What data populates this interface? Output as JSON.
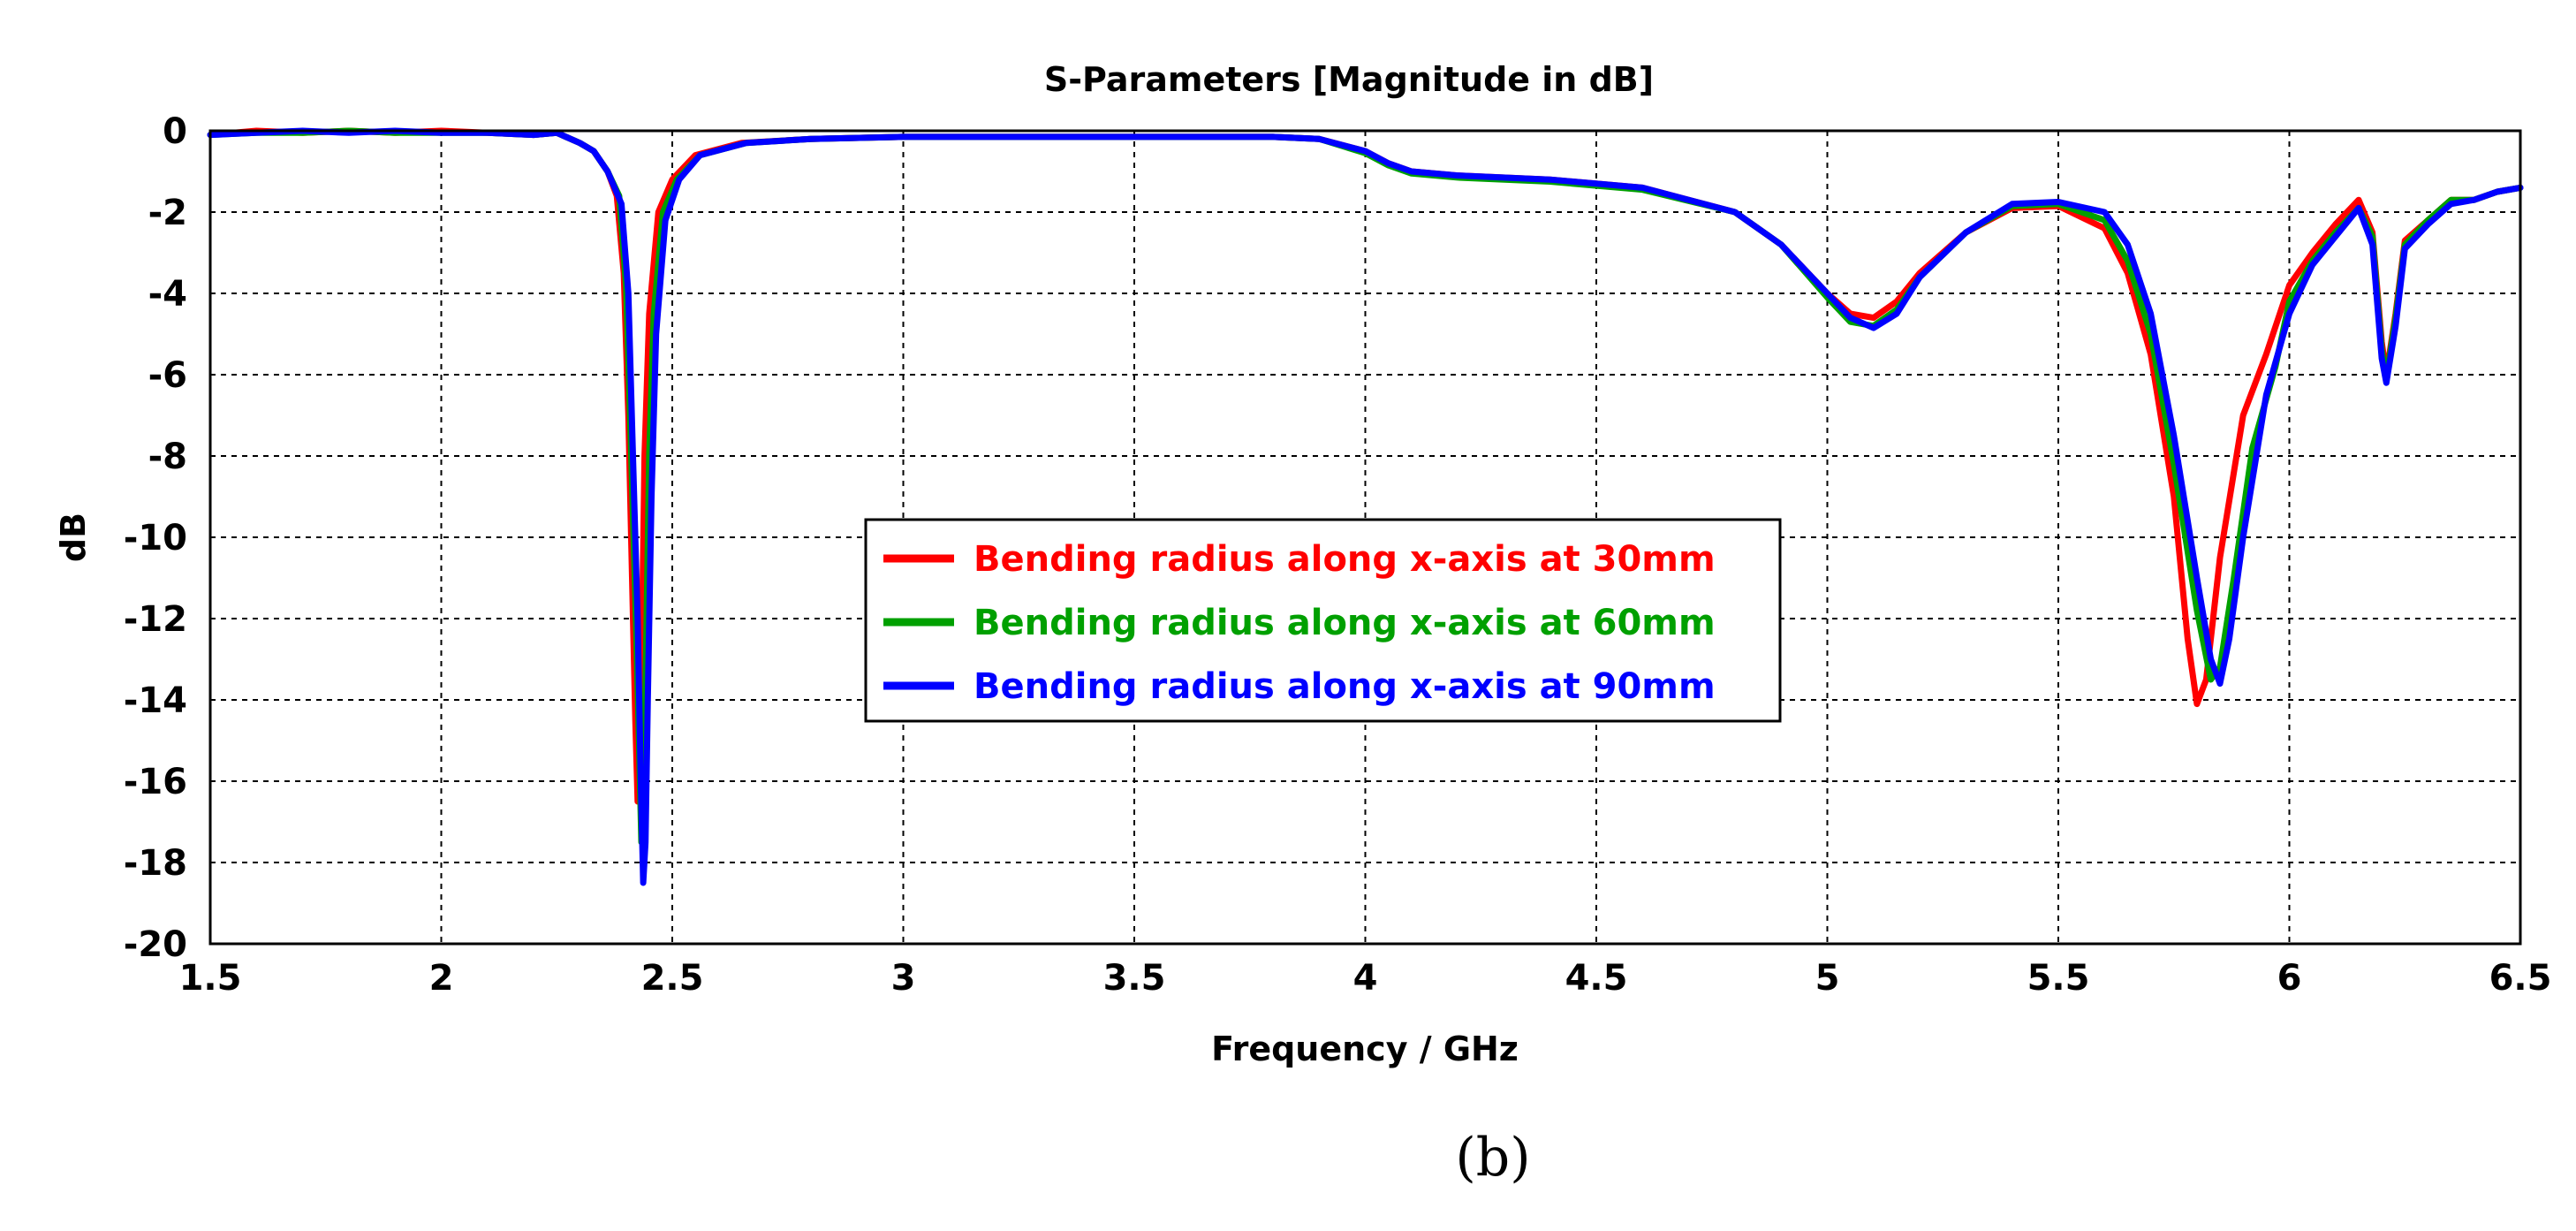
{
  "chart_data": {
    "type": "line",
    "title": "S-Parameters [Magnitude in dB]",
    "xlabel": "Frequency / GHz",
    "ylabel": "dB",
    "xlim": [
      1.5,
      6.5
    ],
    "ylim": [
      -20,
      0
    ],
    "xticks": [
      1.5,
      2,
      2.5,
      3,
      3.5,
      4,
      4.5,
      5,
      5.5,
      6,
      6.5
    ],
    "xtick_labels": [
      "1.5",
      "2",
      "2.5",
      "3",
      "3.5",
      "4",
      "4.5",
      "5",
      "5.5",
      "6",
      "6.5"
    ],
    "yticks": [
      0,
      -2,
      -4,
      -6,
      -8,
      -10,
      -12,
      -14,
      -16,
      -18,
      -20
    ],
    "ytick_labels": [
      "0",
      "-2",
      "-4",
      "-6",
      "-8",
      "-10",
      "-12",
      "-14",
      "-16",
      "-18",
      "-20"
    ],
    "grid": true,
    "legend_position": "center",
    "caption": "(b)",
    "series": [
      {
        "name": "Bending radius along x-axis at 30mm",
        "color": "#ff0000",
        "points": [
          [
            1.5,
            -0.1
          ],
          [
            1.6,
            0
          ],
          [
            1.7,
            -0.05
          ],
          [
            1.8,
            0
          ],
          [
            1.9,
            -0.05
          ],
          [
            2.0,
            0
          ],
          [
            2.1,
            -0.05
          ],
          [
            2.2,
            -0.1
          ],
          [
            2.25,
            -0.05
          ],
          [
            2.3,
            -0.3
          ],
          [
            2.33,
            -0.5
          ],
          [
            2.36,
            -1.0
          ],
          [
            2.38,
            -1.6
          ],
          [
            2.395,
            -3.5
          ],
          [
            2.405,
            -7
          ],
          [
            2.413,
            -11
          ],
          [
            2.42,
            -14.5
          ],
          [
            2.425,
            -16.5
          ],
          [
            2.43,
            -16
          ],
          [
            2.435,
            -12
          ],
          [
            2.44,
            -8
          ],
          [
            2.45,
            -4.5
          ],
          [
            2.47,
            -2.0
          ],
          [
            2.5,
            -1.2
          ],
          [
            2.55,
            -0.6
          ],
          [
            2.65,
            -0.3
          ],
          [
            2.8,
            -0.2
          ],
          [
            3.0,
            -0.15
          ],
          [
            3.5,
            -0.15
          ],
          [
            3.8,
            -0.15
          ],
          [
            3.9,
            -0.2
          ],
          [
            4.0,
            -0.5
          ],
          [
            4.05,
            -0.8
          ],
          [
            4.1,
            -1.0
          ],
          [
            4.2,
            -1.1
          ],
          [
            4.4,
            -1.2
          ],
          [
            4.6,
            -1.4
          ],
          [
            4.8,
            -2.0
          ],
          [
            4.9,
            -2.8
          ],
          [
            5.0,
            -4.0
          ],
          [
            5.05,
            -4.5
          ],
          [
            5.1,
            -4.6
          ],
          [
            5.15,
            -4.2
          ],
          [
            5.2,
            -3.5
          ],
          [
            5.3,
            -2.5
          ],
          [
            5.4,
            -1.9
          ],
          [
            5.5,
            -1.85
          ],
          [
            5.6,
            -2.4
          ],
          [
            5.65,
            -3.5
          ],
          [
            5.7,
            -5.5
          ],
          [
            5.75,
            -9.0
          ],
          [
            5.78,
            -12.5
          ],
          [
            5.8,
            -14.1
          ],
          [
            5.82,
            -13.5
          ],
          [
            5.85,
            -10.5
          ],
          [
            5.9,
            -7.0
          ],
          [
            5.95,
            -5.5
          ],
          [
            6.0,
            -3.8
          ],
          [
            6.05,
            -3.0
          ],
          [
            6.1,
            -2.3
          ],
          [
            6.15,
            -1.7
          ],
          [
            6.18,
            -2.5
          ],
          [
            6.2,
            -5.2
          ],
          [
            6.21,
            -6.0
          ],
          [
            6.23,
            -4.5
          ],
          [
            6.25,
            -2.7
          ],
          [
            6.3,
            -2.2
          ],
          [
            6.35,
            -1.7
          ],
          [
            6.4,
            -1.7
          ],
          [
            6.45,
            -1.5
          ],
          [
            6.5,
            -1.4
          ]
        ]
      },
      {
        "name": "Bending radius along x-axis at 60mm",
        "color": "#00a000",
        "points": [
          [
            1.5,
            -0.1
          ],
          [
            1.6,
            -0.05
          ],
          [
            1.7,
            -0.05
          ],
          [
            1.8,
            0
          ],
          [
            1.9,
            -0.05
          ],
          [
            2.0,
            -0.05
          ],
          [
            2.1,
            -0.05
          ],
          [
            2.2,
            -0.1
          ],
          [
            2.25,
            -0.05
          ],
          [
            2.3,
            -0.3
          ],
          [
            2.33,
            -0.5
          ],
          [
            2.36,
            -1.0
          ],
          [
            2.385,
            -1.6
          ],
          [
            2.4,
            -3.8
          ],
          [
            2.41,
            -7.5
          ],
          [
            2.42,
            -11.5
          ],
          [
            2.428,
            -15
          ],
          [
            2.433,
            -17.5
          ],
          [
            2.438,
            -17
          ],
          [
            2.443,
            -13
          ],
          [
            2.45,
            -8
          ],
          [
            2.46,
            -4.5
          ],
          [
            2.48,
            -2.0
          ],
          [
            2.51,
            -1.2
          ],
          [
            2.56,
            -0.6
          ],
          [
            2.66,
            -0.3
          ],
          [
            2.8,
            -0.2
          ],
          [
            3.0,
            -0.15
          ],
          [
            3.5,
            -0.15
          ],
          [
            3.8,
            -0.15
          ],
          [
            3.9,
            -0.2
          ],
          [
            4.0,
            -0.55
          ],
          [
            4.05,
            -0.85
          ],
          [
            4.1,
            -1.05
          ],
          [
            4.2,
            -1.15
          ],
          [
            4.4,
            -1.25
          ],
          [
            4.6,
            -1.45
          ],
          [
            4.8,
            -2.0
          ],
          [
            4.9,
            -2.8
          ],
          [
            5.0,
            -4.1
          ],
          [
            5.05,
            -4.7
          ],
          [
            5.1,
            -4.8
          ],
          [
            5.15,
            -4.4
          ],
          [
            5.2,
            -3.6
          ],
          [
            5.3,
            -2.5
          ],
          [
            5.4,
            -1.85
          ],
          [
            5.5,
            -1.8
          ],
          [
            5.6,
            -2.2
          ],
          [
            5.65,
            -3.2
          ],
          [
            5.7,
            -5.0
          ],
          [
            5.75,
            -8.2
          ],
          [
            5.8,
            -11.8
          ],
          [
            5.83,
            -13.5
          ],
          [
            5.85,
            -13.2
          ],
          [
            5.88,
            -11.0
          ],
          [
            5.92,
            -7.8
          ],
          [
            5.97,
            -5.8
          ],
          [
            6.0,
            -4.2
          ],
          [
            6.05,
            -3.2
          ],
          [
            6.1,
            -2.5
          ],
          [
            6.15,
            -1.9
          ],
          [
            6.18,
            -2.6
          ],
          [
            6.2,
            -5.4
          ],
          [
            6.21,
            -6.1
          ],
          [
            6.23,
            -4.6
          ],
          [
            6.25,
            -2.8
          ],
          [
            6.3,
            -2.2
          ],
          [
            6.35,
            -1.7
          ],
          [
            6.4,
            -1.7
          ],
          [
            6.45,
            -1.5
          ],
          [
            6.5,
            -1.4
          ]
        ]
      },
      {
        "name": "Bending radius along x-axis at 90mm",
        "color": "#0000ff",
        "points": [
          [
            1.5,
            -0.1
          ],
          [
            1.6,
            -0.05
          ],
          [
            1.7,
            0
          ],
          [
            1.8,
            -0.05
          ],
          [
            1.9,
            0
          ],
          [
            2.0,
            -0.05
          ],
          [
            2.1,
            -0.05
          ],
          [
            2.2,
            -0.1
          ],
          [
            2.25,
            -0.05
          ],
          [
            2.3,
            -0.3
          ],
          [
            2.33,
            -0.5
          ],
          [
            2.36,
            -1.0
          ],
          [
            2.39,
            -1.8
          ],
          [
            2.405,
            -4
          ],
          [
            2.415,
            -8
          ],
          [
            2.425,
            -12
          ],
          [
            2.432,
            -16
          ],
          [
            2.437,
            -18.5
          ],
          [
            2.442,
            -17.5
          ],
          [
            2.447,
            -14
          ],
          [
            2.455,
            -9
          ],
          [
            2.465,
            -5
          ],
          [
            2.485,
            -2.2
          ],
          [
            2.515,
            -1.2
          ],
          [
            2.56,
            -0.6
          ],
          [
            2.66,
            -0.3
          ],
          [
            2.8,
            -0.2
          ],
          [
            3.0,
            -0.15
          ],
          [
            3.5,
            -0.15
          ],
          [
            3.8,
            -0.15
          ],
          [
            3.9,
            -0.2
          ],
          [
            4.0,
            -0.5
          ],
          [
            4.05,
            -0.8
          ],
          [
            4.1,
            -1.0
          ],
          [
            4.2,
            -1.1
          ],
          [
            4.4,
            -1.2
          ],
          [
            4.6,
            -1.4
          ],
          [
            4.8,
            -2.0
          ],
          [
            4.9,
            -2.8
          ],
          [
            5.0,
            -4.0
          ],
          [
            5.05,
            -4.6
          ],
          [
            5.1,
            -4.85
          ],
          [
            5.15,
            -4.5
          ],
          [
            5.2,
            -3.6
          ],
          [
            5.3,
            -2.5
          ],
          [
            5.4,
            -1.8
          ],
          [
            5.5,
            -1.75
          ],
          [
            5.6,
            -2.0
          ],
          [
            5.65,
            -2.8
          ],
          [
            5.7,
            -4.5
          ],
          [
            5.75,
            -7.5
          ],
          [
            5.8,
            -11.0
          ],
          [
            5.83,
            -13.0
          ],
          [
            5.85,
            -13.6
          ],
          [
            5.87,
            -12.5
          ],
          [
            5.9,
            -10.0
          ],
          [
            5.95,
            -6.5
          ],
          [
            6.0,
            -4.5
          ],
          [
            6.05,
            -3.3
          ],
          [
            6.1,
            -2.6
          ],
          [
            6.15,
            -1.9
          ],
          [
            6.18,
            -2.8
          ],
          [
            6.2,
            -5.6
          ],
          [
            6.21,
            -6.2
          ],
          [
            6.23,
            -4.8
          ],
          [
            6.25,
            -2.9
          ],
          [
            6.3,
            -2.3
          ],
          [
            6.35,
            -1.8
          ],
          [
            6.4,
            -1.7
          ],
          [
            6.45,
            -1.5
          ],
          [
            6.5,
            -1.4
          ]
        ]
      }
    ]
  }
}
